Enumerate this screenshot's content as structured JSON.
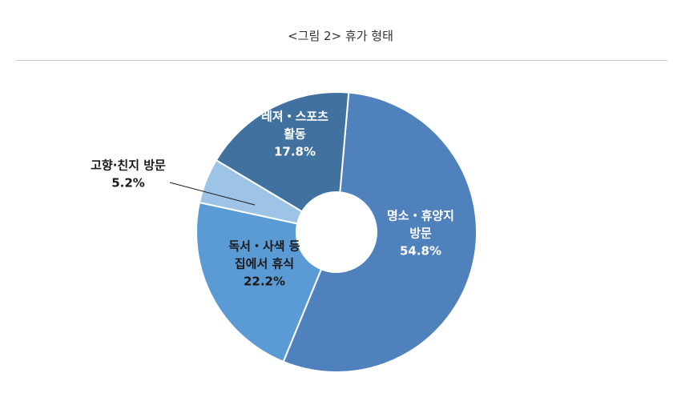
{
  "figure": {
    "title": "<그림 2> 휴가 형태"
  },
  "chart_data": {
    "type": "pie",
    "variant": "donut",
    "slices": [
      {
        "label_lines": [
          "명소・휴양지",
          "방문"
        ],
        "value": 54.8,
        "value_text": "54.8%",
        "color": "#4F81BD",
        "label_color": "#ffffff"
      },
      {
        "label_lines": [
          "독서・사색 등",
          "집에서 휴식"
        ],
        "value": 22.2,
        "value_text": "22.2%",
        "color": "#5B9BD5",
        "label_color": "#1a1a1a"
      },
      {
        "label_lines": [
          "고향·친지 방문"
        ],
        "value": 5.2,
        "value_text": "5.2%",
        "color": "#9DC3E6",
        "label_color": "#1a1a1a",
        "outside_label": true
      },
      {
        "label_lines": [
          "레져・스포츠",
          "활동"
        ],
        "value": 17.8,
        "value_text": "17.8%",
        "color": "#41729F",
        "label_color": "#ffffff"
      }
    ]
  }
}
